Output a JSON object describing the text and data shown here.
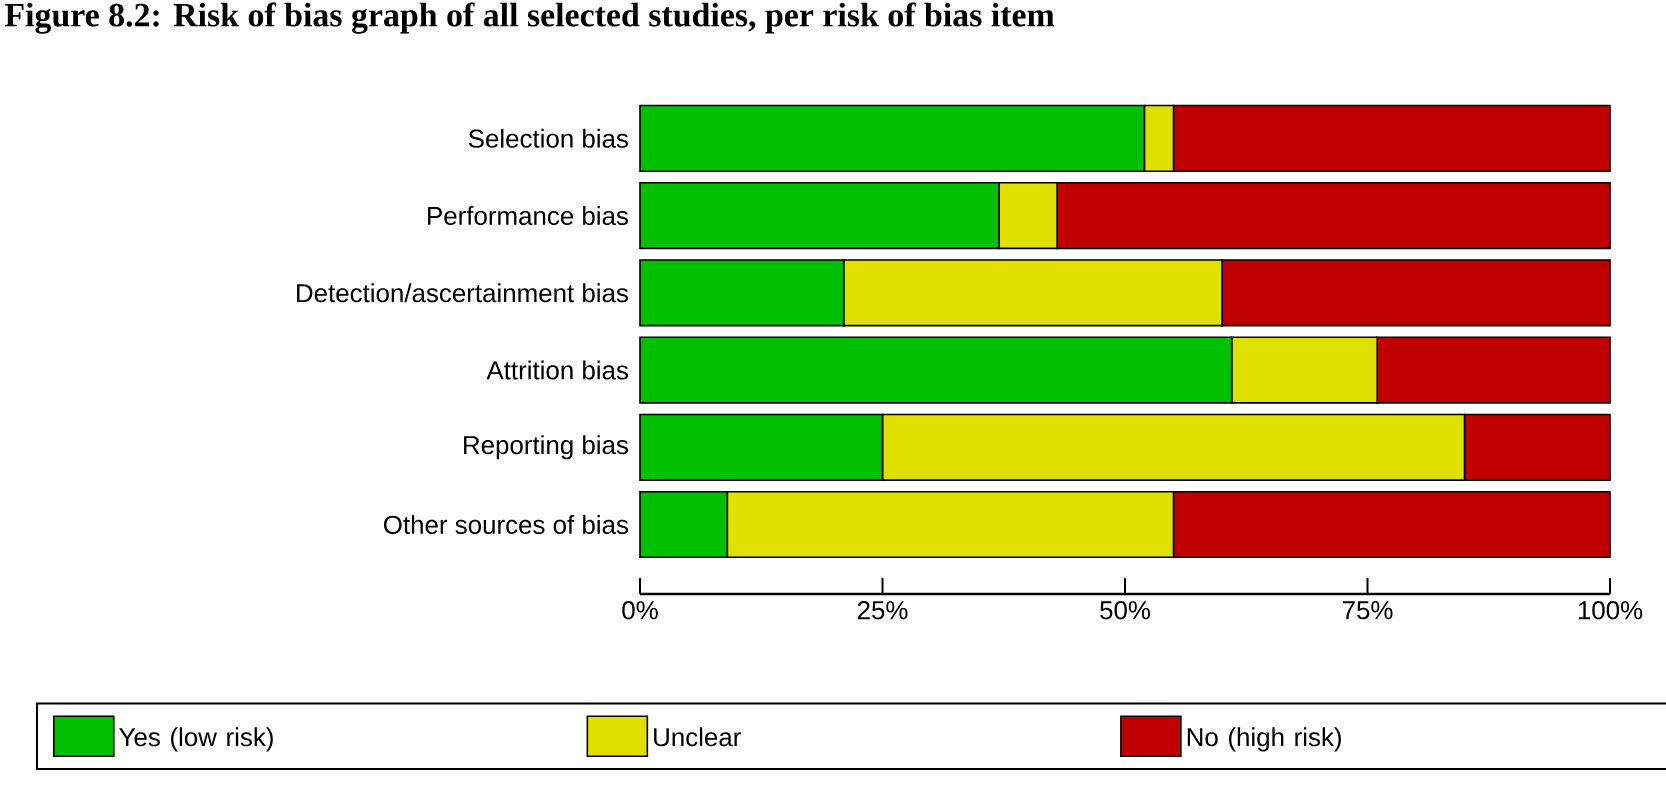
{
  "chart_data": {
    "type": "bar",
    "orientation": "horizontal",
    "stacked": true,
    "title": "Figure 8.2: Risk of bias graph of all selected studies, per risk of bias item",
    "categories": [
      "Selection bias",
      "Performance bias",
      "Detection/ascertainment bias",
      "Attrition bias",
      "Reporting bias",
      "Other sources of bias"
    ],
    "series": [
      {
        "name": "Yes (low risk)",
        "color": "#00c000",
        "values": [
          52,
          37,
          21,
          61,
          25,
          9
        ]
      },
      {
        "name": "Unclear",
        "color": "#e0e000",
        "values": [
          3,
          6,
          39,
          15,
          60,
          46
        ]
      },
      {
        "name": "No (high risk)",
        "color": "#c00000",
        "values": [
          45,
          57,
          40,
          24,
          15,
          45
        ]
      }
    ],
    "xlim": [
      0,
      100
    ],
    "xticks": [
      {
        "value": 0,
        "label": "0%"
      },
      {
        "value": 25,
        "label": "25%"
      },
      {
        "value": 50,
        "label": "50%"
      },
      {
        "value": 75,
        "label": "75%"
      },
      {
        "value": 100,
        "label": "100%"
      }
    ],
    "legend": "bottom",
    "grid": false
  }
}
